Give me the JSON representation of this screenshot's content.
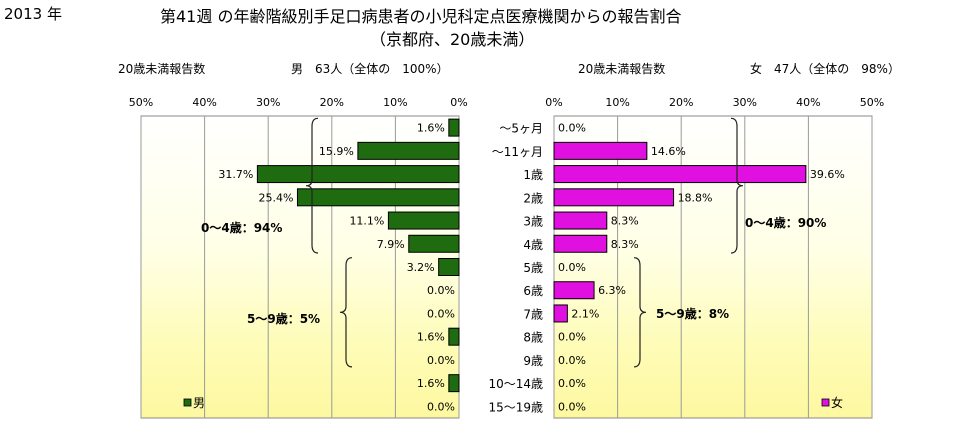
{
  "header": {
    "year": "2013 年",
    "title_line1": "第41週 の年齢階級別手足口病患者の小児科定点医療機関からの報告割合",
    "title_line2": "（京都府、20歳未満）"
  },
  "chart_data": {
    "type": "bar",
    "orientation": "horizontal",
    "categories": [
      "～5ヶ月",
      "～11ヶ月",
      "1歳",
      "2歳",
      "3歳",
      "4歳",
      "5歳",
      "6歳",
      "7歳",
      "8歳",
      "9歳",
      "10～14歳",
      "15～19歳"
    ],
    "xlim": [
      0,
      50
    ],
    "x_ticks": [
      "0%",
      "10%",
      "20%",
      "30%",
      "40%",
      "50%"
    ],
    "male": {
      "subtitle_left": "20歳未満報告数",
      "subtitle_right": "男　63人（全体の　100%）",
      "legend": "男",
      "color": "#1e6b10",
      "values": [
        1.6,
        15.9,
        31.7,
        25.4,
        11.1,
        7.9,
        3.2,
        0.0,
        0.0,
        1.6,
        0.0,
        1.6,
        0.0
      ],
      "labels": [
        "1.6%",
        "15.9%",
        "31.7%",
        "25.4%",
        "11.1%",
        "7.9%",
        "3.2%",
        "0.0%",
        "0.0%",
        "1.6%",
        "0.0%",
        "1.6%",
        "0.0%"
      ],
      "group_0_4": "0～4歳：94%",
      "group_5_9": "5～9歳：5%"
    },
    "female": {
      "subtitle_left": "20歳未満報告数",
      "subtitle_right": "女　47人（全体の　98%）",
      "legend": "女",
      "color": "#e010e0",
      "values": [
        0.0,
        14.6,
        39.6,
        18.8,
        8.3,
        8.3,
        0.0,
        6.3,
        2.1,
        0.0,
        0.0,
        0.0,
        0.0
      ],
      "labels": [
        "0.0%",
        "14.6%",
        "39.6%",
        "18.8%",
        "8.3%",
        "8.3%",
        "0.0%",
        "6.3%",
        "2.1%",
        "0.0%",
        "0.0%",
        "0.0%",
        "0.0%"
      ],
      "group_0_4": "0～4歳：90%",
      "group_5_9": "5～9歳：8%"
    }
  }
}
